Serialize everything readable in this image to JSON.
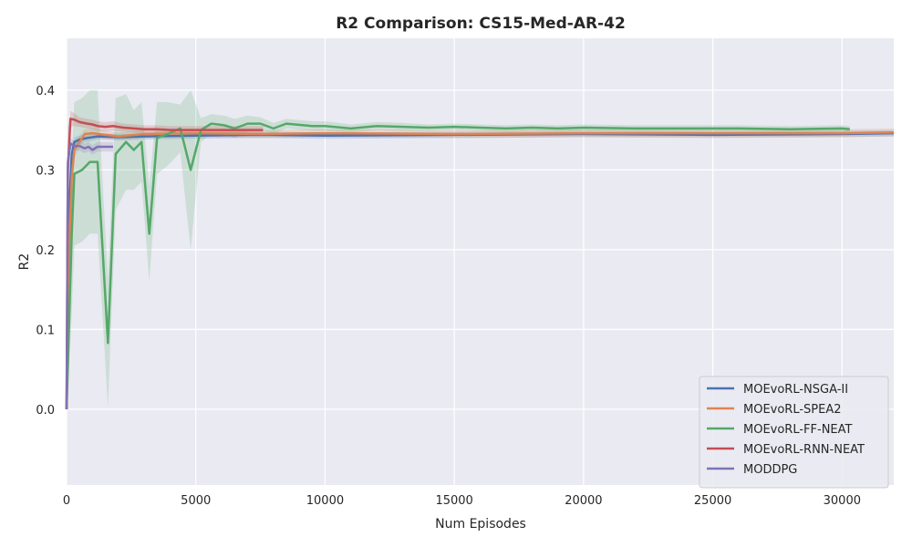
{
  "chart_data": {
    "type": "line",
    "title": "R2 Comparison: CS15-Med-AR-42",
    "xlabel": "Num Episodes",
    "ylabel": "R2",
    "xlim": [
      0,
      32000
    ],
    "ylim": [
      -0.095,
      0.465
    ],
    "x_ticks": [
      0,
      5000,
      10000,
      15000,
      20000,
      25000,
      30000
    ],
    "y_ticks": [
      0.0,
      0.1,
      0.2,
      0.3,
      0.4
    ],
    "grid": true,
    "legend_position": "lower-right",
    "background_color": "#eaeaf2",
    "series": [
      {
        "name": "MOEvoRL-NSGA-II",
        "color": "#4c72b0",
        "x": [
          0,
          100,
          200,
          300,
          500,
          800,
          1200,
          2000,
          3000,
          5000,
          7500,
          10000,
          15000,
          20000,
          25000,
          30000,
          32000
        ],
        "y": [
          0.0,
          0.25,
          0.32,
          0.335,
          0.338,
          0.34,
          0.342,
          0.341,
          0.342,
          0.343,
          0.344,
          0.343,
          0.344,
          0.345,
          0.344,
          0.345,
          0.346
        ],
        "band": [
          0.004,
          0.008,
          0.008,
          0.006,
          0.005,
          0.005,
          0.004,
          0.004,
          0.004,
          0.004,
          0.004,
          0.004,
          0.004,
          0.004,
          0.004,
          0.004,
          0.004
        ]
      },
      {
        "name": "MOEvoRL-SPEA2",
        "color": "#dd8452",
        "x": [
          0,
          100,
          200,
          300,
          500,
          700,
          1000,
          1500,
          2000,
          3000,
          5000,
          7500,
          10000,
          15000,
          20000,
          25000,
          30000,
          32000
        ],
        "y": [
          0.0,
          0.2,
          0.29,
          0.325,
          0.335,
          0.345,
          0.346,
          0.344,
          0.342,
          0.345,
          0.346,
          0.345,
          0.346,
          0.345,
          0.346,
          0.346,
          0.346,
          0.347
        ],
        "band": [
          0.004,
          0.01,
          0.012,
          0.01,
          0.008,
          0.006,
          0.006,
          0.005,
          0.005,
          0.005,
          0.005,
          0.005,
          0.005,
          0.005,
          0.005,
          0.005,
          0.005,
          0.005
        ]
      },
      {
        "name": "MOEvoRL-FF-NEAT",
        "color": "#55a868",
        "x": [
          0,
          200,
          300,
          600,
          900,
          1200,
          1600,
          1900,
          2300,
          2600,
          2900,
          3200,
          3500,
          3900,
          4400,
          4800,
          5200,
          5600,
          6100,
          6500,
          7000,
          7500,
          8000,
          8500,
          9500,
          10000,
          11000,
          12000,
          13000,
          14000,
          15000,
          16000,
          17000,
          18000,
          19000,
          20000,
          22000,
          24000,
          26000,
          28000,
          30000,
          30300
        ],
        "y": [
          0.0,
          0.22,
          0.295,
          0.3,
          0.31,
          0.31,
          0.083,
          0.32,
          0.335,
          0.325,
          0.335,
          0.22,
          0.34,
          0.345,
          0.352,
          0.3,
          0.35,
          0.358,
          0.356,
          0.352,
          0.358,
          0.358,
          0.352,
          0.358,
          0.355,
          0.355,
          0.352,
          0.355,
          0.354,
          0.353,
          0.354,
          0.353,
          0.352,
          0.353,
          0.352,
          0.353,
          0.352,
          0.352,
          0.352,
          0.351,
          0.352,
          0.351
        ],
        "band": [
          0.004,
          0.1,
          0.09,
          0.09,
          0.09,
          0.09,
          0.08,
          0.07,
          0.06,
          0.05,
          0.05,
          0.06,
          0.045,
          0.04,
          0.03,
          0.1,
          0.015,
          0.012,
          0.012,
          0.012,
          0.01,
          0.008,
          0.007,
          0.006,
          0.006,
          0.006,
          0.005,
          0.005,
          0.005,
          0.004,
          0.004,
          0.004,
          0.004,
          0.004,
          0.004,
          0.004,
          0.004,
          0.004,
          0.004,
          0.004,
          0.004,
          0.004
        ]
      },
      {
        "name": "MOEvoRL-RNN-NEAT",
        "color": "#c44e52",
        "x": [
          0,
          50,
          150,
          300,
          500,
          800,
          1000,
          1200,
          1500,
          1800,
          2200,
          2600,
          3000,
          3500,
          4000,
          5000,
          6000,
          7000,
          7600
        ],
        "y": [
          0.0,
          0.3,
          0.364,
          0.363,
          0.36,
          0.358,
          0.357,
          0.355,
          0.354,
          0.355,
          0.353,
          0.352,
          0.351,
          0.351,
          0.35,
          0.35,
          0.35,
          0.35,
          0.35
        ],
        "band": [
          0.004,
          0.02,
          0.01,
          0.008,
          0.006,
          0.006,
          0.006,
          0.006,
          0.006,
          0.006,
          0.005,
          0.005,
          0.005,
          0.005,
          0.005,
          0.005,
          0.005,
          0.005,
          0.005
        ]
      },
      {
        "name": "MODDPG",
        "color": "#8172b2",
        "x": [
          0,
          50,
          150,
          300,
          500,
          700,
          850,
          1000,
          1200,
          1500,
          1800
        ],
        "y": [
          0.0,
          0.31,
          0.333,
          0.33,
          0.33,
          0.327,
          0.329,
          0.325,
          0.329,
          0.329,
          0.329
        ],
        "band": [
          0.004,
          0.05,
          0.007,
          0.006,
          0.006,
          0.006,
          0.006,
          0.006,
          0.006,
          0.006,
          0.006
        ]
      }
    ]
  }
}
